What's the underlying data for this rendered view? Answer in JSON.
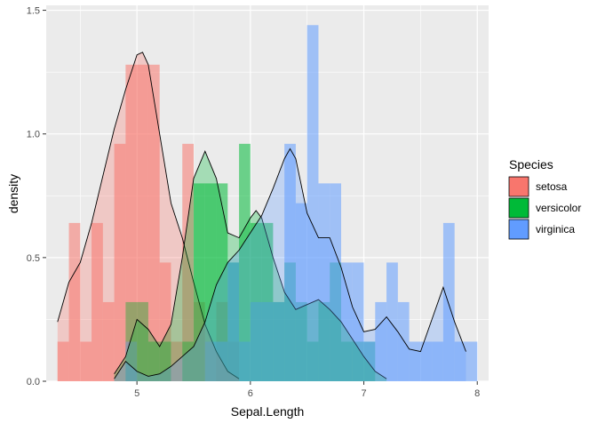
{
  "chart_data": {
    "type": "histogram",
    "xlabel": "Sepal.Length",
    "ylabel": "density",
    "xlim": [
      4.2,
      8.1
    ],
    "ylim": [
      0,
      1.52
    ],
    "x_ticks": [
      5,
      6,
      7,
      8
    ],
    "y_ticks": [
      0.0,
      0.5,
      1.0,
      1.5
    ],
    "y_tick_labels": [
      "0.0",
      "0.5",
      "1.0",
      "1.5"
    ],
    "grid": true,
    "legend": {
      "title": "Species",
      "placement": "right"
    },
    "bin_width": 0.1,
    "series": [
      {
        "name": "setosa",
        "color": "#F8766D",
        "bin_starts": [
          4.3,
          4.4,
          4.5,
          4.6,
          4.7,
          4.8,
          4.9,
          5.0,
          5.1,
          5.2,
          5.3,
          5.4,
          5.5,
          5.6,
          5.7,
          5.8
        ],
        "bar_density": [
          0.16,
          0.64,
          0.16,
          0.64,
          0.32,
          0.96,
          1.28,
          1.28,
          1.28,
          0.48,
          0.16,
          0.96,
          0.32,
          0.0,
          0.32,
          0.16
        ],
        "kde": [
          [
            4.3,
            0.24
          ],
          [
            4.4,
            0.4
          ],
          [
            4.5,
            0.48
          ],
          [
            4.6,
            0.64
          ],
          [
            4.7,
            0.83
          ],
          [
            4.8,
            1.02
          ],
          [
            4.9,
            1.18
          ],
          [
            5.0,
            1.32
          ],
          [
            5.05,
            1.33
          ],
          [
            5.1,
            1.28
          ],
          [
            5.2,
            1.0
          ],
          [
            5.3,
            0.72
          ],
          [
            5.4,
            0.58
          ],
          [
            5.5,
            0.4
          ],
          [
            5.6,
            0.23
          ],
          [
            5.7,
            0.12
          ],
          [
            5.8,
            0.04
          ],
          [
            5.9,
            0.01
          ]
        ]
      },
      {
        "name": "versicolor",
        "color": "#00BA38",
        "bin_starts": [
          4.9,
          5.0,
          5.1,
          5.2,
          5.3,
          5.4,
          5.5,
          5.6,
          5.7,
          5.8,
          5.9,
          6.0,
          6.1,
          6.2,
          6.3,
          6.4,
          6.5,
          6.6,
          6.7,
          6.8,
          6.9,
          7.0
        ],
        "bar_density": [
          0.32,
          0.32,
          0.16,
          0.16,
          0.0,
          0.16,
          0.8,
          0.8,
          0.8,
          0.48,
          0.96,
          0.64,
          0.64,
          0.32,
          0.48,
          0.32,
          0.16,
          0.32,
          0.48,
          0.16,
          0.16,
          0.16
        ],
        "kde": [
          [
            4.8,
            0.03
          ],
          [
            4.9,
            0.1
          ],
          [
            5.0,
            0.25
          ],
          [
            5.1,
            0.21
          ],
          [
            5.2,
            0.14
          ],
          [
            5.3,
            0.23
          ],
          [
            5.4,
            0.5
          ],
          [
            5.5,
            0.82
          ],
          [
            5.6,
            0.93
          ],
          [
            5.7,
            0.82
          ],
          [
            5.8,
            0.6
          ],
          [
            5.9,
            0.58
          ],
          [
            6.0,
            0.66
          ],
          [
            6.05,
            0.69
          ],
          [
            6.1,
            0.66
          ],
          [
            6.2,
            0.5
          ],
          [
            6.3,
            0.36
          ],
          [
            6.4,
            0.29
          ],
          [
            6.5,
            0.31
          ],
          [
            6.6,
            0.33
          ],
          [
            6.7,
            0.29
          ],
          [
            6.8,
            0.24
          ],
          [
            6.9,
            0.17
          ],
          [
            7.0,
            0.1
          ],
          [
            7.1,
            0.04
          ],
          [
            7.2,
            0.01
          ]
        ]
      },
      {
        "name": "virginica",
        "color": "#619CFF",
        "bin_starts": [
          4.9,
          5.6,
          5.7,
          5.8,
          5.9,
          6.0,
          6.1,
          6.2,
          6.3,
          6.4,
          6.5,
          6.6,
          6.7,
          6.8,
          6.9,
          7.0,
          7.1,
          7.2,
          7.3,
          7.4,
          7.5,
          7.6,
          7.7,
          7.8,
          7.9
        ],
        "bar_density": [
          0.16,
          0.16,
          0.16,
          0.48,
          0.16,
          0.32,
          0.32,
          0.32,
          0.96,
          0.72,
          1.44,
          0.8,
          0.8,
          0.48,
          0.48,
          0.16,
          0.32,
          0.48,
          0.32,
          0.16,
          0.16,
          0.16,
          0.64,
          0.16,
          0.16
        ],
        "kde": [
          [
            4.8,
            0.01
          ],
          [
            4.9,
            0.08
          ],
          [
            5.0,
            0.04
          ],
          [
            5.1,
            0.02
          ],
          [
            5.2,
            0.03
          ],
          [
            5.3,
            0.06
          ],
          [
            5.4,
            0.1
          ],
          [
            5.5,
            0.14
          ],
          [
            5.6,
            0.24
          ],
          [
            5.7,
            0.39
          ],
          [
            5.8,
            0.48
          ],
          [
            5.9,
            0.53
          ],
          [
            6.0,
            0.6
          ],
          [
            6.1,
            0.67
          ],
          [
            6.2,
            0.78
          ],
          [
            6.3,
            0.9
          ],
          [
            6.35,
            0.94
          ],
          [
            6.4,
            0.9
          ],
          [
            6.5,
            0.68
          ],
          [
            6.6,
            0.58
          ],
          [
            6.7,
            0.58
          ],
          [
            6.8,
            0.46
          ],
          [
            6.9,
            0.3
          ],
          [
            7.0,
            0.2
          ],
          [
            7.1,
            0.21
          ],
          [
            7.2,
            0.26
          ],
          [
            7.3,
            0.2
          ],
          [
            7.4,
            0.13
          ],
          [
            7.5,
            0.12
          ],
          [
            7.6,
            0.25
          ],
          [
            7.7,
            0.38
          ],
          [
            7.8,
            0.24
          ],
          [
            7.9,
            0.12
          ]
        ]
      }
    ]
  }
}
